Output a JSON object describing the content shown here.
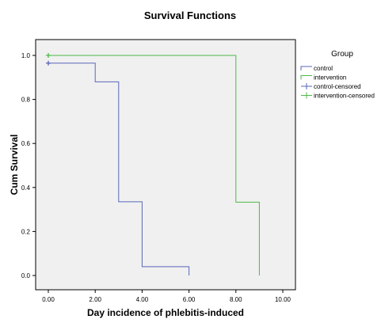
{
  "chart_data": {
    "type": "line",
    "step": true,
    "title": "Survival Functions",
    "xlabel": "Day incidence of phlebitis-induced",
    "ylabel": "Cum Survival",
    "xlim": [
      0,
      10
    ],
    "ylim": [
      0,
      1
    ],
    "xticks": [
      "0.00",
      "2.00",
      "4.00",
      "6.00",
      "8.00",
      "10.00"
    ],
    "xtick_values": [
      0,
      2,
      4,
      6,
      8,
      10
    ],
    "yticks": [
      "0.0",
      "0.2",
      "0.4",
      "0.6",
      "0.8",
      "1.0"
    ],
    "ytick_values": [
      0,
      0.2,
      0.4,
      0.6,
      0.8,
      1.0
    ],
    "grid": false,
    "plot_background": "#f0f0f0",
    "legend": {
      "title": "Group",
      "placement": "right",
      "entries": [
        {
          "label": "control",
          "marker": "step"
        },
        {
          "label": "intervention",
          "marker": "step"
        },
        {
          "label": "control-censored",
          "marker": "plus"
        },
        {
          "label": "intervention-censored",
          "marker": "plus"
        }
      ]
    },
    "series": [
      {
        "name": "control",
        "color": "#5a66b8",
        "steps": [
          [
            0,
            0.965
          ],
          [
            2,
            0.88
          ],
          [
            3,
            0.335
          ],
          [
            4,
            0.04
          ],
          [
            6,
            0.0
          ]
        ],
        "censored": [
          [
            0,
            0.965
          ]
        ]
      },
      {
        "name": "intervention",
        "color": "#4db848",
        "steps": [
          [
            0,
            1.0
          ],
          [
            8,
            0.333
          ],
          [
            9,
            0.0
          ]
        ],
        "censored": [
          [
            0,
            1.0
          ]
        ]
      }
    ]
  }
}
